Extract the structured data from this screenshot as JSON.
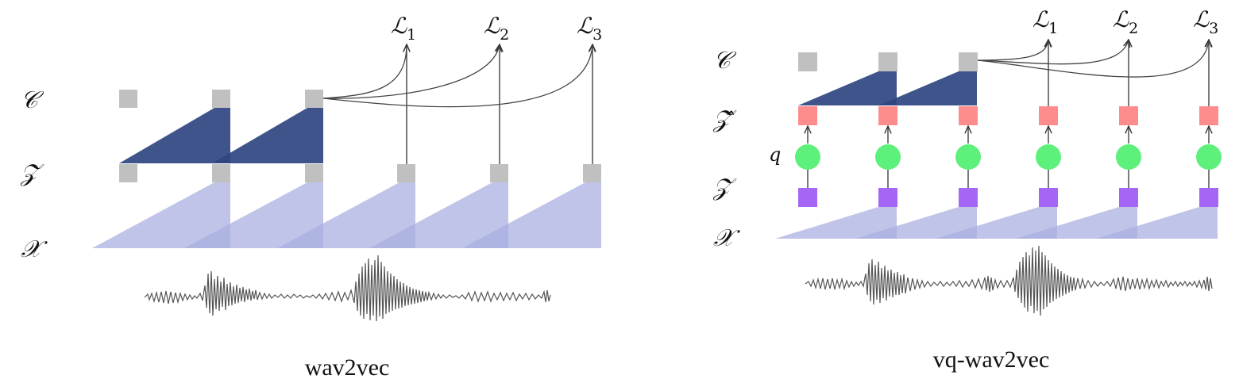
{
  "left_panel": {
    "caption": "wav2vec",
    "row_labels": {
      "c": "𝒞",
      "z": "𝒵",
      "x": "𝒳"
    },
    "losses": [
      {
        "base": "ℒ",
        "sub": "1"
      },
      {
        "base": "ℒ",
        "sub": "2"
      },
      {
        "base": "ℒ",
        "sub": "3"
      }
    ]
  },
  "right_panel": {
    "caption": "vq-wav2vec",
    "row_labels": {
      "c": "𝒞",
      "zhat": "𝒵̂",
      "z": "𝒵",
      "x": "𝒳"
    },
    "quantizer_label": "q",
    "losses": [
      {
        "base": "ℒ",
        "sub": "1"
      },
      {
        "base": "ℒ",
        "sub": "2"
      },
      {
        "base": "ℒ",
        "sub": "3"
      }
    ]
  },
  "colors": {
    "context_node": "#c0c0c0",
    "context_network": "#2e4580",
    "encoder_receptive_field": "#aab0e0",
    "quantized_node": "#ff8c8c",
    "quantizer_node": "#5df07a",
    "latent_node_vq": "#a566f5",
    "waveform": "#555555"
  },
  "icons": {
    "loss_arrow": "arrow-up-icon",
    "waveform": "waveform-icon"
  }
}
